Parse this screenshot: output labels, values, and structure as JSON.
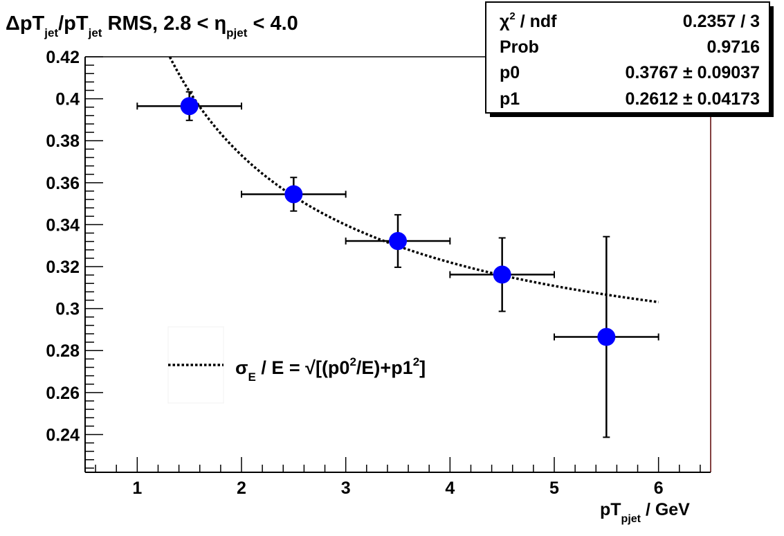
{
  "chart_data": {
    "type": "scatter",
    "title": {
      "delta": "Δ",
      "pt1": "pT",
      "sub1": "jet",
      "slash_pt": "/pT",
      "sub2": "jet",
      "rest1": " RMS, 2.8 < ",
      "eta": "η",
      "sub3": "pjet",
      "rest2": " < 4.0"
    },
    "xlabel": {
      "main": "pT",
      "sub": "pjet",
      "rest": " / GeV"
    },
    "ylabel": "",
    "xlim": [
      0.5,
      6.5
    ],
    "ylim": [
      0.222,
      0.42
    ],
    "x_ticks": [
      "1",
      "2",
      "3",
      "4",
      "5",
      "6"
    ],
    "x_tick_values": [
      1,
      2,
      3,
      4,
      5,
      6
    ],
    "y_ticks": [
      "0.24",
      "0.26",
      "0.28",
      "0.3",
      "0.32",
      "0.34",
      "0.36",
      "0.38",
      "0.4",
      "0.42"
    ],
    "y_tick_values": [
      0.24,
      0.26,
      0.28,
      0.3,
      0.32,
      0.34,
      0.36,
      0.38,
      0.4,
      0.42
    ],
    "series": [
      {
        "points": [
          {
            "x": 1.5,
            "y": 0.3965,
            "xerr": 0.5,
            "yerr": 0.0068
          },
          {
            "x": 2.5,
            "y": 0.3545,
            "xerr": 0.5,
            "yerr": 0.008
          },
          {
            "x": 3.5,
            "y": 0.3322,
            "xerr": 0.5,
            "yerr": 0.0125
          },
          {
            "x": 4.5,
            "y": 0.3162,
            "xerr": 0.5,
            "yerr": 0.0175
          },
          {
            "x": 5.5,
            "y": 0.2865,
            "xerr": 0.5,
            "yerr": 0.0478
          }
        ],
        "color": "#0000ff"
      }
    ],
    "fit": {
      "p0": 0.3767,
      "p1": 0.2612,
      "x_range": [
        1.0,
        6.0
      ],
      "style": "dotted",
      "color": "#000000"
    },
    "legend": {
      "sigma": "σ",
      "sub": "E",
      "text1": " / E = ",
      "sqrt": "√",
      "text2": "[(p0",
      "sup1": "2",
      "text3": "/E)+p1",
      "sup2": "2",
      "text4": "]",
      "placement": "lower-left"
    },
    "stats": {
      "rows": [
        {
          "label_chi": "χ",
          "label_sup": "2",
          "label_rest": " / ndf",
          "value": "0.2357 / 3"
        },
        {
          "label": "Prob",
          "value": "0.9716"
        },
        {
          "label": "p0",
          "value": "0.3767 ± 0.09037"
        },
        {
          "label": "p1",
          "value": "0.2612 ± 0.04173"
        }
      ],
      "placement": "top-right"
    },
    "grid": false
  }
}
